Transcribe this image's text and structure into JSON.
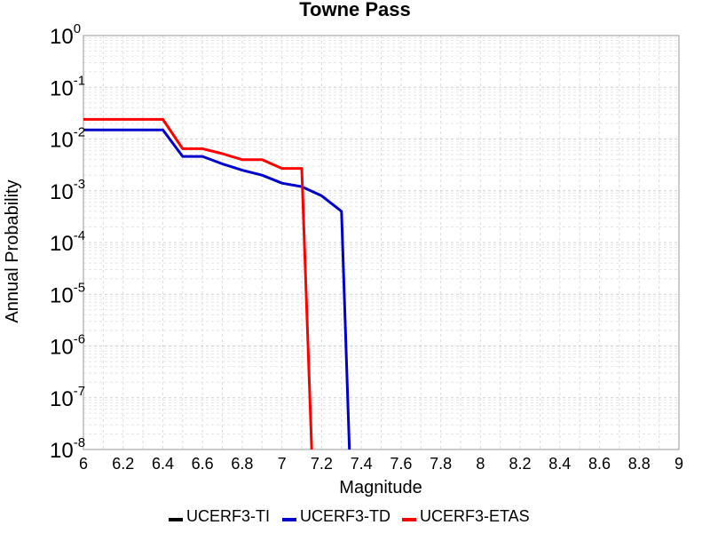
{
  "chart_data": {
    "type": "line",
    "title": "Towne Pass",
    "xlabel": "Magnitude",
    "ylabel": "Annual Probability",
    "xlim": [
      6,
      9
    ],
    "ylim": [
      1e-08,
      1
    ],
    "y_scale": "log",
    "grid": true,
    "legend_position": "bottom",
    "x_ticks": [
      "6",
      "6.2",
      "6.4",
      "6.6",
      "6.8",
      "7",
      "7.2",
      "7.4",
      "7.6",
      "7.8",
      "8",
      "8.2",
      "8.4",
      "8.6",
      "8.8",
      "9"
    ],
    "y_ticks": [
      {
        "base": "10",
        "exp": "-8"
      },
      {
        "base": "10",
        "exp": "-7"
      },
      {
        "base": "10",
        "exp": "-6"
      },
      {
        "base": "10",
        "exp": "-5"
      },
      {
        "base": "10",
        "exp": "-4"
      },
      {
        "base": "10",
        "exp": "-3"
      },
      {
        "base": "10",
        "exp": "-2"
      },
      {
        "base": "10",
        "exp": "-1"
      },
      {
        "base": "10",
        "exp": "0"
      }
    ],
    "series": [
      {
        "name": "UCERF3-TI",
        "color": "#000000",
        "x": [],
        "y": []
      },
      {
        "name": "UCERF3-TD",
        "color": "#0000cc",
        "x": [
          6.0,
          6.1,
          6.2,
          6.3,
          6.4,
          6.5,
          6.6,
          6.7,
          6.8,
          6.9,
          7.0,
          7.1,
          7.2,
          7.3,
          7.34
        ],
        "y": [
          0.015,
          0.015,
          0.015,
          0.015,
          0.015,
          0.0046,
          0.0046,
          0.0033,
          0.0025,
          0.002,
          0.0014,
          0.0012,
          0.0008,
          0.0004,
          1e-08
        ]
      },
      {
        "name": "UCERF3-ETAS",
        "color": "#ff0000",
        "x": [
          6.0,
          6.1,
          6.2,
          6.3,
          6.4,
          6.5,
          6.6,
          6.7,
          6.8,
          6.9,
          7.0,
          7.1,
          7.1,
          7.15
        ],
        "y": [
          0.024,
          0.024,
          0.024,
          0.024,
          0.024,
          0.0065,
          0.0065,
          0.0052,
          0.004,
          0.004,
          0.0027,
          0.0027,
          0.0027,
          1e-08
        ]
      }
    ]
  }
}
